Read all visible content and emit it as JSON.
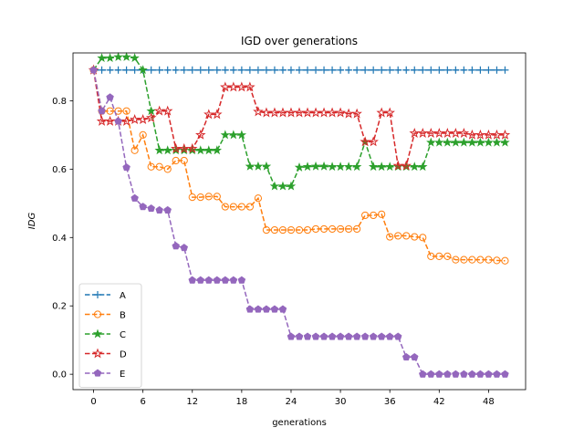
{
  "chart_data": {
    "type": "line",
    "title": "IGD over generations",
    "xlabel": "generations",
    "ylabel": "IDG",
    "xlim": [
      -2.5,
      52.5
    ],
    "ylim": [
      -0.045,
      0.94
    ],
    "xticks": [
      0,
      6,
      12,
      18,
      24,
      30,
      36,
      42,
      48
    ],
    "yticks": [
      0.0,
      0.2,
      0.4,
      0.6,
      0.8
    ],
    "ytick_labels": [
      "0.0",
      "0.2",
      "0.4",
      "0.6",
      "0.8"
    ],
    "grid": false,
    "legend_position": "lower-left",
    "x": [
      0,
      1,
      2,
      3,
      4,
      5,
      6,
      7,
      8,
      9,
      10,
      11,
      12,
      13,
      14,
      15,
      16,
      17,
      18,
      19,
      20,
      21,
      22,
      23,
      24,
      25,
      26,
      27,
      28,
      29,
      30,
      31,
      32,
      33,
      34,
      35,
      36,
      37,
      38,
      39,
      40,
      41,
      42,
      43,
      44,
      45,
      46,
      47,
      48,
      49,
      50
    ],
    "series": [
      {
        "name": "A",
        "color": "#1f77b4",
        "marker": "plus",
        "values": [
          0.89,
          0.89,
          0.89,
          0.89,
          0.89,
          0.89,
          0.89,
          0.89,
          0.89,
          0.89,
          0.89,
          0.89,
          0.89,
          0.89,
          0.89,
          0.89,
          0.89,
          0.89,
          0.89,
          0.89,
          0.89,
          0.89,
          0.89,
          0.89,
          0.89,
          0.89,
          0.89,
          0.89,
          0.89,
          0.89,
          0.89,
          0.89,
          0.89,
          0.89,
          0.89,
          0.89,
          0.89,
          0.89,
          0.89,
          0.89,
          0.89,
          0.89,
          0.89,
          0.89,
          0.89,
          0.89,
          0.89,
          0.89,
          0.89,
          0.89,
          0.89
        ]
      },
      {
        "name": "B",
        "color": "#ff7f0e",
        "marker": "circle",
        "values": [
          0.89,
          0.77,
          0.77,
          0.77,
          0.77,
          0.655,
          0.7,
          0.607,
          0.607,
          0.6,
          0.625,
          0.625,
          0.518,
          0.518,
          0.52,
          0.52,
          0.49,
          0.49,
          0.49,
          0.49,
          0.515,
          0.422,
          0.422,
          0.422,
          0.422,
          0.422,
          0.422,
          0.425,
          0.425,
          0.425,
          0.425,
          0.425,
          0.425,
          0.465,
          0.465,
          0.468,
          0.402,
          0.405,
          0.405,
          0.402,
          0.4,
          0.345,
          0.345,
          0.345,
          0.335,
          0.335,
          0.335,
          0.335,
          0.335,
          0.333,
          0.332
        ]
      },
      {
        "name": "C",
        "color": "#2ca02c",
        "marker": "star",
        "values": [
          0.89,
          0.925,
          0.925,
          0.928,
          0.928,
          0.925,
          0.89,
          0.77,
          0.655,
          0.655,
          0.655,
          0.655,
          0.655,
          0.655,
          0.655,
          0.655,
          0.7,
          0.7,
          0.7,
          0.608,
          0.608,
          0.608,
          0.55,
          0.55,
          0.55,
          0.605,
          0.607,
          0.608,
          0.608,
          0.607,
          0.607,
          0.607,
          0.607,
          0.68,
          0.607,
          0.607,
          0.607,
          0.607,
          0.607,
          0.607,
          0.607,
          0.678,
          0.678,
          0.678,
          0.678,
          0.678,
          0.678,
          0.678,
          0.678,
          0.678,
          0.678
        ]
      },
      {
        "name": "D",
        "color": "#d62728",
        "marker": "star-open",
        "values": [
          0.89,
          0.74,
          0.74,
          0.74,
          0.74,
          0.745,
          0.745,
          0.75,
          0.77,
          0.77,
          0.66,
          0.66,
          0.66,
          0.7,
          0.76,
          0.76,
          0.84,
          0.84,
          0.84,
          0.84,
          0.768,
          0.765,
          0.765,
          0.765,
          0.765,
          0.765,
          0.765,
          0.765,
          0.765,
          0.765,
          0.765,
          0.762,
          0.762,
          0.68,
          0.68,
          0.765,
          0.765,
          0.61,
          0.61,
          0.705,
          0.705,
          0.705,
          0.705,
          0.705,
          0.705,
          0.705,
          0.7,
          0.7,
          0.7,
          0.7,
          0.7
        ]
      },
      {
        "name": "E",
        "color": "#9467bd",
        "marker": "pentagon",
        "values": [
          0.89,
          0.77,
          0.81,
          0.74,
          0.605,
          0.515,
          0.49,
          0.485,
          0.48,
          0.48,
          0.375,
          0.37,
          0.275,
          0.275,
          0.275,
          0.275,
          0.275,
          0.275,
          0.275,
          0.19,
          0.19,
          0.19,
          0.19,
          0.19,
          0.11,
          0.11,
          0.11,
          0.11,
          0.11,
          0.11,
          0.11,
          0.11,
          0.11,
          0.11,
          0.11,
          0.11,
          0.11,
          0.11,
          0.05,
          0.05,
          0.0,
          0.0,
          0.0,
          0.0,
          0.0,
          0.0,
          0.0,
          0.0,
          0.0,
          0.0,
          0.0
        ]
      }
    ]
  }
}
